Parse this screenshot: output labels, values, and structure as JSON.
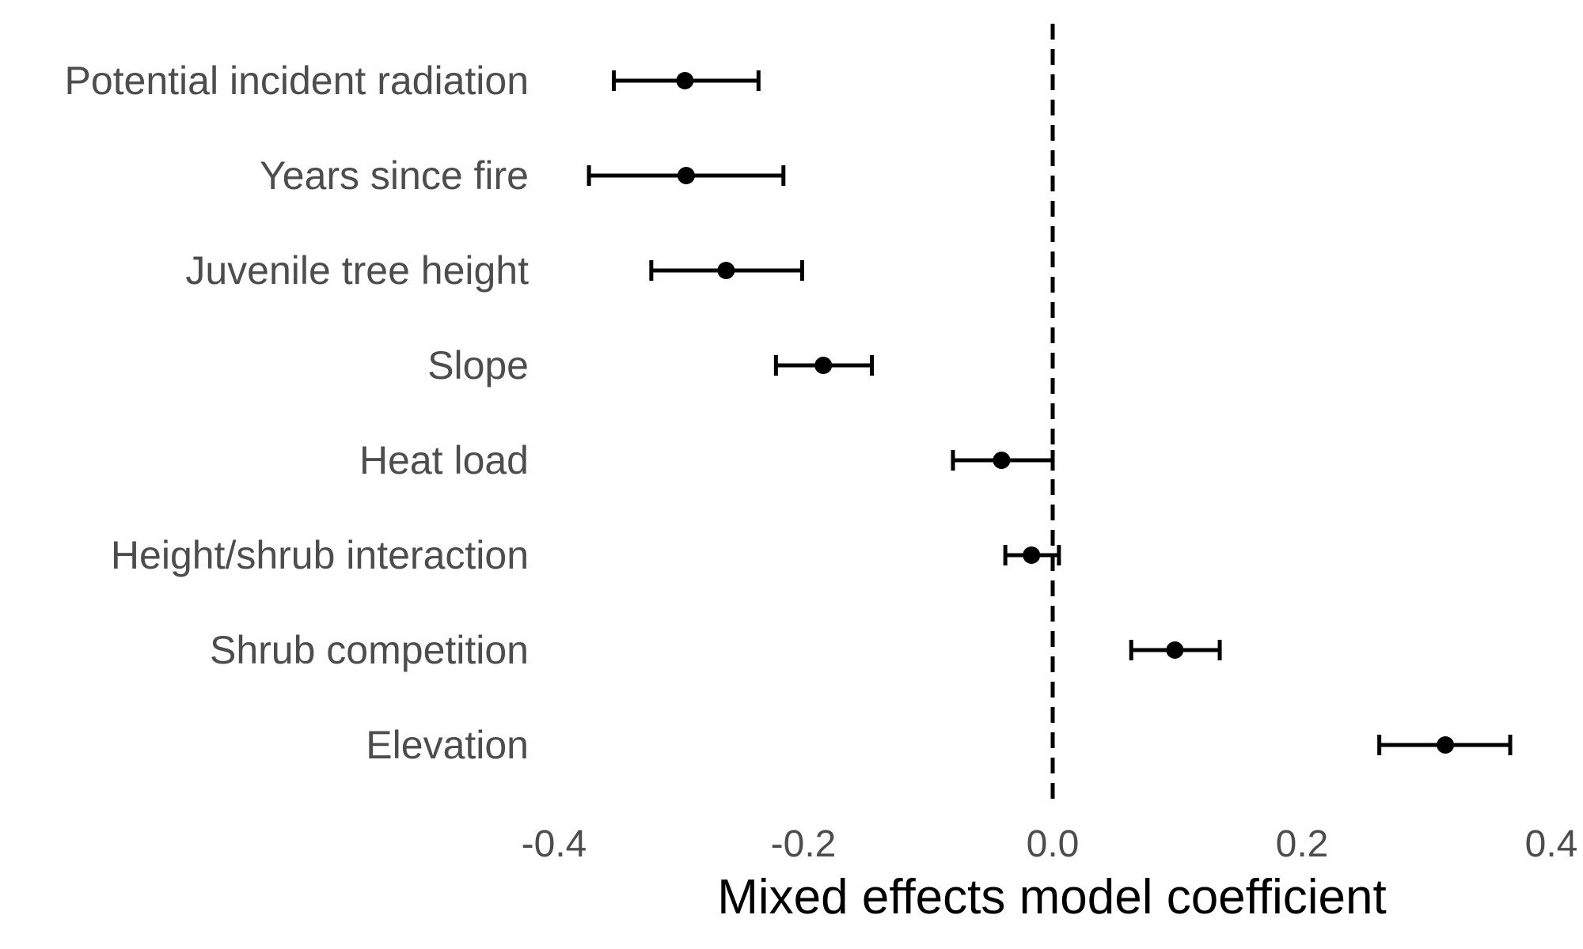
{
  "chart_data": {
    "type": "scatter",
    "subtype": "coefficient-plot-with-error-bars",
    "title": "",
    "xlabel": "Mixed effects model coefficient",
    "ylabel": "",
    "xlim": [
      -0.4,
      0.4
    ],
    "xticks": [
      -0.4,
      -0.2,
      0.0,
      0.2,
      0.4
    ],
    "xtick_labels": [
      "-0.4",
      "-0.2",
      "0.0",
      "0.2",
      "0.4"
    ],
    "grid": false,
    "reference_line": {
      "x": 0.0,
      "style": "dashed"
    },
    "colors": {
      "points": "#000000",
      "errorbars": "#000000",
      "labels": "#4d4d4d",
      "background": "#ffffff"
    },
    "categories": [
      "Potential incident radiation",
      "Years since fire",
      "Juvenile tree height",
      "Slope",
      "Heat load",
      "Height/shrub interaction",
      "Shrub competition",
      "Elevation"
    ],
    "estimates": [
      -0.295,
      -0.294,
      -0.262,
      -0.184,
      -0.041,
      -0.017,
      0.098,
      0.315
    ],
    "lower": [
      -0.352,
      -0.372,
      -0.322,
      -0.222,
      -0.08,
      -0.038,
      0.063,
      0.262
    ],
    "upper": [
      -0.236,
      -0.216,
      -0.201,
      -0.145,
      0.0,
      0.005,
      0.134,
      0.367
    ]
  }
}
